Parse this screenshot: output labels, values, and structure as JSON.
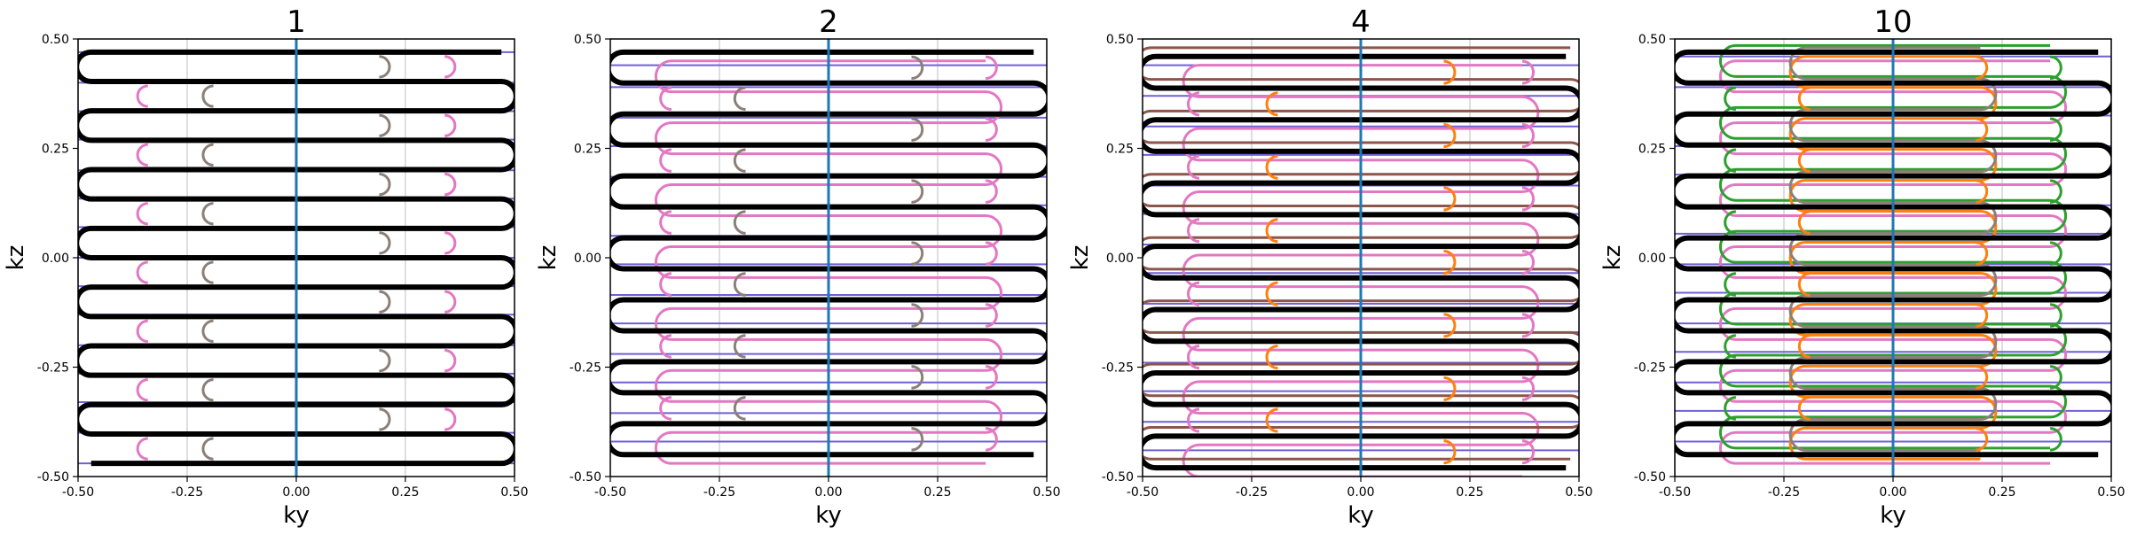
{
  "colors": {
    "black_path": "#000000",
    "blue_axis_line": "#1f77b4",
    "purple_lines": "#6f5fd8",
    "pink": "#e377c2",
    "gray_brown": "#8c7f78",
    "brown": "#8c564b",
    "orange": "#ff7f0e",
    "green": "#2ca02c",
    "grid": "#c8c8c8"
  },
  "chart_data": [
    {
      "type": "line",
      "title": "1",
      "xlabel": "ky",
      "ylabel": "kz",
      "xlim": [
        -0.5,
        0.5
      ],
      "ylim": [
        -0.5,
        0.5
      ],
      "xticks": [
        "-0.50",
        "-0.25",
        "0.00",
        "0.25",
        "0.50"
      ],
      "yticks": [
        "-0.50",
        "-0.25",
        "0.00",
        "0.25",
        "0.50"
      ],
      "grid": "vertical",
      "main_path": {
        "x_left": -0.47,
        "x_right": 0.47,
        "y_top": 0.47,
        "y_bottom": -0.47,
        "passes": 15,
        "start_y": 0.47,
        "end_y": -0.47
      },
      "horizontal_lines_y": [
        0.47,
        0.4,
        0.335,
        0.27,
        0.2,
        0.135,
        0.07,
        0.0,
        -0.065,
        -0.13,
        -0.2,
        -0.265,
        -0.33,
        -0.4,
        -0.47
      ],
      "vertical_center_line": 0.0,
      "arc_groups": [
        {
          "x": -0.19,
          "color": "gray_brown",
          "side": "left"
        },
        {
          "x": -0.34,
          "color": "pink",
          "side": "left"
        },
        {
          "x": 0.19,
          "color": "gray_brown",
          "side": "right"
        },
        {
          "x": 0.34,
          "color": "pink",
          "side": "right"
        }
      ],
      "inner_paths": []
    },
    {
      "type": "line",
      "title": "2",
      "xlabel": "ky",
      "ylabel": "kz",
      "xlim": [
        -0.5,
        0.5
      ],
      "ylim": [
        -0.5,
        0.5
      ],
      "xticks": [
        "-0.50",
        "-0.25",
        "0.00",
        "0.25",
        "0.50"
      ],
      "yticks": [
        "-0.50",
        "-0.25",
        "0.00",
        "0.25",
        "0.50"
      ],
      "grid": "vertical",
      "main_path": {
        "x_left": -0.47,
        "x_right": 0.47,
        "y_top": 0.47,
        "y_bottom": -0.45,
        "passes": 14,
        "start_y": 0.485,
        "end_y": -0.45
      },
      "horizontal_lines_y": [
        0.44,
        0.39,
        0.32,
        0.255,
        0.185,
        0.12,
        0.05,
        -0.015,
        -0.085,
        -0.15,
        -0.22,
        -0.285,
        -0.355,
        -0.42
      ],
      "vertical_center_line": 0.0,
      "arc_groups": [
        {
          "x": -0.19,
          "color": "gray_brown",
          "side": "left"
        },
        {
          "x": -0.36,
          "color": "pink",
          "side": "left"
        },
        {
          "x": 0.19,
          "color": "gray_brown",
          "side": "right"
        },
        {
          "x": 0.36,
          "color": "pink",
          "side": "right"
        }
      ],
      "inner_paths": [
        {
          "color": "pink",
          "x_left": -0.36,
          "x_right": 0.36,
          "offset": -0.02
        }
      ]
    },
    {
      "type": "line",
      "title": "4",
      "xlabel": "ky",
      "ylabel": "kz",
      "xlim": [
        -0.5,
        0.5
      ],
      "ylim": [
        -0.5,
        0.5
      ],
      "xticks": [
        "-0.50",
        "-0.25",
        "0.00",
        "0.25",
        "0.50"
      ],
      "yticks": [
        "-0.50",
        "-0.25",
        "0.00",
        "0.25",
        "0.50"
      ],
      "grid": "vertical",
      "main_path": {
        "x_left": -0.47,
        "x_right": 0.47,
        "y_top": 0.46,
        "y_bottom": -0.48,
        "passes": 14,
        "start_y": 0.46,
        "end_y": -0.48
      },
      "horizontal_lines_y": [
        0.44,
        0.37,
        0.3,
        0.235,
        0.165,
        0.1,
        0.03,
        -0.035,
        -0.105,
        -0.17,
        -0.24,
        -0.305,
        -0.375,
        -0.44
      ],
      "vertical_center_line": 0.0,
      "arc_groups": [
        {
          "x": -0.19,
          "color": "orange",
          "side": "left"
        },
        {
          "x": -0.37,
          "color": "pink",
          "side": "left"
        },
        {
          "x": 0.19,
          "color": "orange",
          "side": "right"
        },
        {
          "x": 0.37,
          "color": "pink",
          "side": "right"
        }
      ],
      "inner_paths": [
        {
          "color": "pink",
          "x_left": -0.37,
          "x_right": 0.37,
          "offset": -0.02
        },
        {
          "color": "brown",
          "x_left": -0.48,
          "x_right": 0.48,
          "offset": 0.02
        }
      ]
    },
    {
      "type": "line",
      "title": "10",
      "xlabel": "ky",
      "ylabel": "kz",
      "xlim": [
        -0.5,
        0.5
      ],
      "ylim": [
        -0.5,
        0.5
      ],
      "xticks": [
        "-0.50",
        "-0.25",
        "0.00",
        "0.25",
        "0.50"
      ],
      "yticks": [
        "-0.50",
        "-0.25",
        "0.00",
        "0.25",
        "0.50"
      ],
      "grid": "vertical",
      "main_path": {
        "x_left": -0.47,
        "x_right": 0.47,
        "y_top": 0.47,
        "y_bottom": -0.45,
        "passes": 14,
        "start_y": 0.47,
        "end_y": -0.45
      },
      "horizontal_lines_y": [
        0.46,
        0.39,
        0.325,
        0.255,
        0.19,
        0.12,
        0.055,
        -0.015,
        -0.08,
        -0.15,
        -0.215,
        -0.285,
        -0.35,
        -0.42
      ],
      "vertical_center_line": 0.0,
      "arc_groups": [
        {
          "x": -0.19,
          "color": "orange",
          "side": "left"
        },
        {
          "x": -0.36,
          "color": "green",
          "side": "left"
        },
        {
          "x": 0.19,
          "color": "orange",
          "side": "right"
        },
        {
          "x": 0.36,
          "color": "green",
          "side": "right"
        }
      ],
      "inner_paths": [
        {
          "color": "pink",
          "x_left": -0.36,
          "x_right": 0.36,
          "offset": -0.02
        },
        {
          "color": "green",
          "x_left": -0.36,
          "x_right": 0.36,
          "offset": 0.015
        },
        {
          "color": "orange",
          "x_left": -0.2,
          "x_right": 0.2,
          "offset": -0.01
        },
        {
          "color": "gray_brown",
          "x_left": -0.2,
          "x_right": 0.2,
          "offset": 0.01
        }
      ]
    }
  ]
}
